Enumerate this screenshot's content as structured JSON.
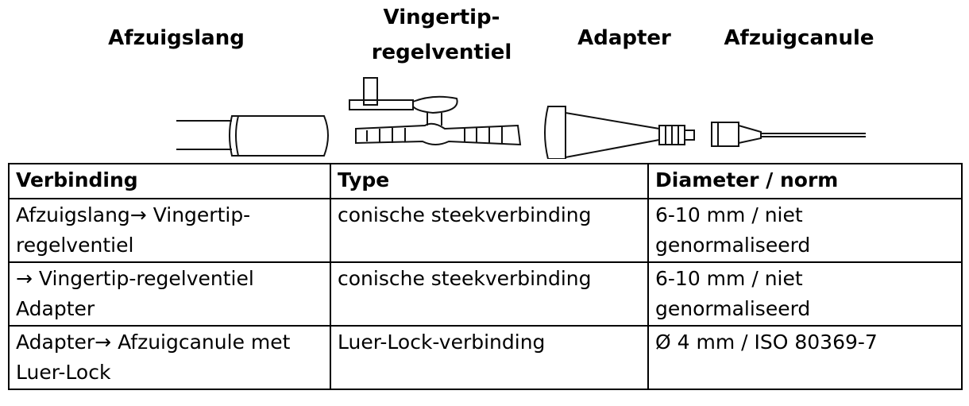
{
  "labels": [
    "Afzuigslang",
    "Vingertip-regelventiel",
    "Adapter",
    "Afzuigcanule"
  ],
  "table": {
    "header": [
      "Verbinding",
      "Type",
      "Diameter / norm"
    ],
    "rows": [
      [
        "Afzuigslang→ Vingertip-regelventiel",
        "conische steekverbinding",
        "6-10 mm / niet genormaliseerd"
      ],
      [
        "→ Vingertip-regelventiel Adapter",
        "conische steekverbinding",
        "6-10 mm / niet genormaliseerd"
      ],
      [
        "Adapter→ Afzuigcanule met Luer-Lock",
        "Luer-Lock-verbinding",
        "Ø 4 mm / ISO 80369-7"
      ]
    ]
  }
}
